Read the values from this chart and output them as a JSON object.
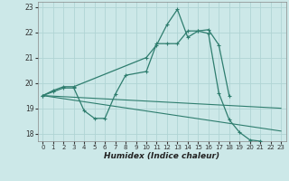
{
  "xlabel": "Humidex (Indice chaleur)",
  "bg_color": "#cce8e8",
  "line_color": "#2e7d6e",
  "grid_color": "#b0d4d4",
  "xlim": [
    -0.5,
    23.5
  ],
  "ylim": [
    17.7,
    23.2
  ],
  "yticks": [
    18,
    19,
    20,
    21,
    22,
    23
  ],
  "xticks": [
    0,
    1,
    2,
    3,
    4,
    5,
    6,
    7,
    8,
    9,
    10,
    11,
    12,
    13,
    14,
    15,
    16,
    17,
    18,
    19,
    20,
    21,
    22,
    23
  ],
  "curve1_x": [
    0,
    1,
    2,
    3,
    10,
    11,
    12,
    13,
    14,
    15,
    16,
    17,
    18
  ],
  "curve1_y": [
    19.5,
    19.7,
    19.85,
    19.85,
    21.0,
    21.5,
    22.3,
    22.9,
    21.8,
    22.05,
    22.1,
    21.5,
    19.5
  ],
  "curve2_x": [
    0,
    1,
    2,
    3,
    4,
    5,
    6,
    7,
    8,
    10,
    11,
    12,
    13,
    14,
    15,
    16,
    17,
    18,
    19,
    20,
    21,
    22,
    23
  ],
  "curve2_y": [
    19.5,
    19.65,
    19.8,
    19.8,
    18.9,
    18.6,
    18.6,
    19.55,
    20.3,
    20.45,
    21.55,
    21.55,
    21.55,
    22.05,
    22.05,
    21.95,
    19.6,
    18.55,
    18.05,
    17.75,
    17.7,
    17.6,
    17.55
  ],
  "line3_x": [
    0,
    23
  ],
  "line3_y": [
    19.5,
    18.1
  ],
  "line4_x": [
    0,
    23
  ],
  "line4_y": [
    19.5,
    19.0
  ]
}
